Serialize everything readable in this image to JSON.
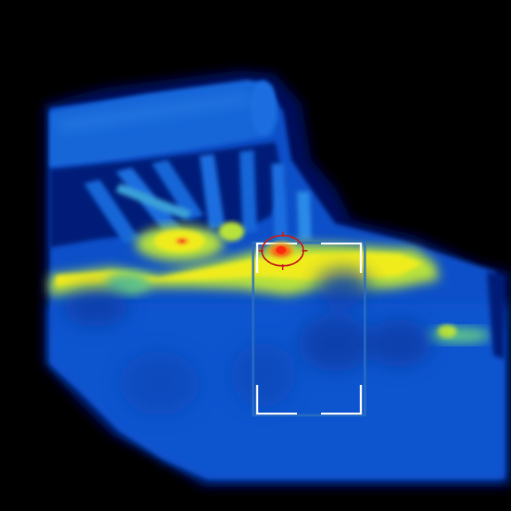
{
  "scene": {
    "type": "thermal-camera-view",
    "palette": [
      "#000000",
      "#000a5a",
      "#0a2d9a",
      "#0f4fc8",
      "#1a6ee0",
      "#2c8ae8",
      "#3aa0d8",
      "#5fc38a",
      "#b8e23a",
      "#f0ec1e",
      "#f6b31e",
      "#ee4a1c"
    ],
    "background_color": "#000000",
    "subject": "vehicle-heat-signature"
  },
  "overlay": {
    "reticle_color": "#c41e1e",
    "bracket_color": "#ffffff",
    "hotspot_color": "#ff2a10",
    "target_box_color": "#2c6fc0"
  }
}
